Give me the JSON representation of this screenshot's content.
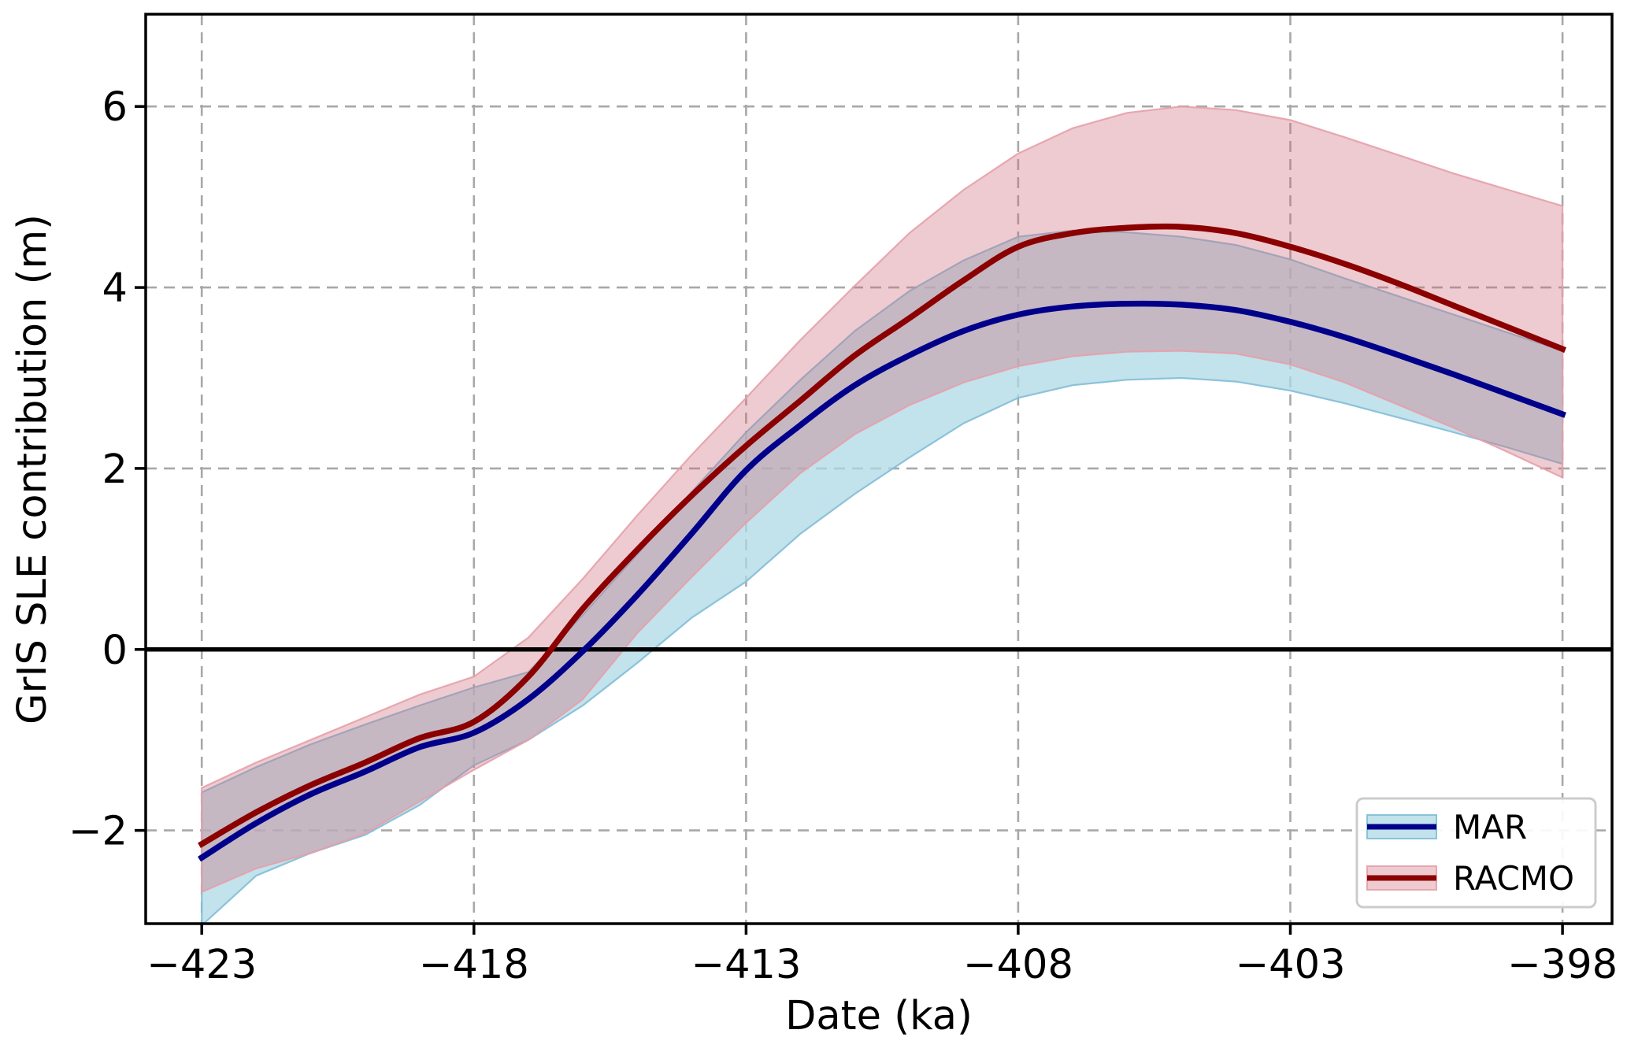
{
  "figure": {
    "background": "#ffffff"
  },
  "chart_data": {
    "type": "line",
    "title": "",
    "xlabel": "Date (ka)",
    "ylabel": "GrIS SLE contribution (m)",
    "xlim": [
      -424.03,
      -397.09
    ],
    "ylim": [
      -3.03,
      7.02
    ],
    "grid": true,
    "grid_color": "#a8a8a8",
    "zero_line": true,
    "zero_line_color": "#000000",
    "x_ticks": [
      -423,
      -418,
      -413,
      -408,
      -403,
      -398
    ],
    "x_tick_labels": [
      "−423",
      "−418",
      "−413",
      "−408",
      "−403",
      "−398"
    ],
    "y_ticks": [
      -2,
      0,
      2,
      4,
      6
    ],
    "y_tick_labels": [
      "−2",
      "0",
      "2",
      "4",
      "6"
    ],
    "legend": {
      "position": "lower right",
      "entries": [
        "MAR",
        "RACMO"
      ]
    },
    "x": [
      -423,
      -422,
      -421,
      -420,
      -419,
      -418,
      -417,
      -416,
      -415,
      -414,
      -413,
      -412,
      -411,
      -410,
      -409,
      -408,
      -407,
      -406,
      -405,
      -404,
      -403,
      -402,
      -401,
      -400,
      -399,
      -398
    ],
    "series": [
      {
        "name": "MAR",
        "color": "#00008b",
        "band_fill": "rgba(173,216,230,0.75)",
        "band_edge": "rgba(130,190,215,0.9)",
        "values": [
          -2.3,
          -1.92,
          -1.6,
          -1.35,
          -1.08,
          -0.92,
          -0.55,
          -0.02,
          0.6,
          1.28,
          1.98,
          2.48,
          2.92,
          3.25,
          3.52,
          3.7,
          3.79,
          3.82,
          3.81,
          3.75,
          3.62,
          3.45,
          3.25,
          3.04,
          2.82,
          2.6
        ],
        "band_upper": [
          -1.58,
          -1.3,
          -1.05,
          -0.83,
          -0.62,
          -0.42,
          -0.25,
          0.38,
          1.05,
          1.74,
          2.4,
          2.98,
          3.52,
          3.96,
          4.3,
          4.56,
          4.63,
          4.61,
          4.56,
          4.47,
          4.31,
          4.1,
          3.9,
          3.7,
          3.5,
          3.3
        ],
        "band_lower": [
          -3.05,
          -2.5,
          -2.25,
          -2.05,
          -1.72,
          -1.28,
          -1.0,
          -0.62,
          -0.15,
          0.35,
          0.75,
          1.28,
          1.72,
          2.12,
          2.5,
          2.78,
          2.92,
          2.98,
          3.0,
          2.96,
          2.86,
          2.72,
          2.56,
          2.4,
          2.23,
          2.05
        ]
      },
      {
        "name": "RACMO",
        "color": "#8b0000",
        "band_fill": "rgba(205,105,120,0.35)",
        "band_edge": "rgba(230,160,170,0.9)",
        "values": [
          -2.15,
          -1.8,
          -1.5,
          -1.25,
          -0.98,
          -0.8,
          -0.3,
          0.45,
          1.1,
          1.7,
          2.25,
          2.75,
          3.25,
          3.66,
          4.08,
          4.45,
          4.6,
          4.66,
          4.67,
          4.6,
          4.45,
          4.26,
          4.04,
          3.8,
          3.56,
          3.32
        ],
        "band_upper": [
          -1.53,
          -1.25,
          -1.0,
          -0.75,
          -0.5,
          -0.3,
          0.13,
          0.78,
          1.48,
          2.15,
          2.78,
          3.42,
          4.02,
          4.6,
          5.08,
          5.48,
          5.76,
          5.93,
          6.0,
          5.96,
          5.85,
          5.66,
          5.46,
          5.26,
          5.08,
          4.9
        ],
        "band_lower": [
          -2.68,
          -2.42,
          -2.25,
          -2.03,
          -1.68,
          -1.33,
          -1.0,
          -0.55,
          0.18,
          0.8,
          1.4,
          1.95,
          2.38,
          2.7,
          2.95,
          3.13,
          3.24,
          3.29,
          3.3,
          3.27,
          3.15,
          2.95,
          2.7,
          2.45,
          2.18,
          1.9
        ]
      }
    ]
  }
}
